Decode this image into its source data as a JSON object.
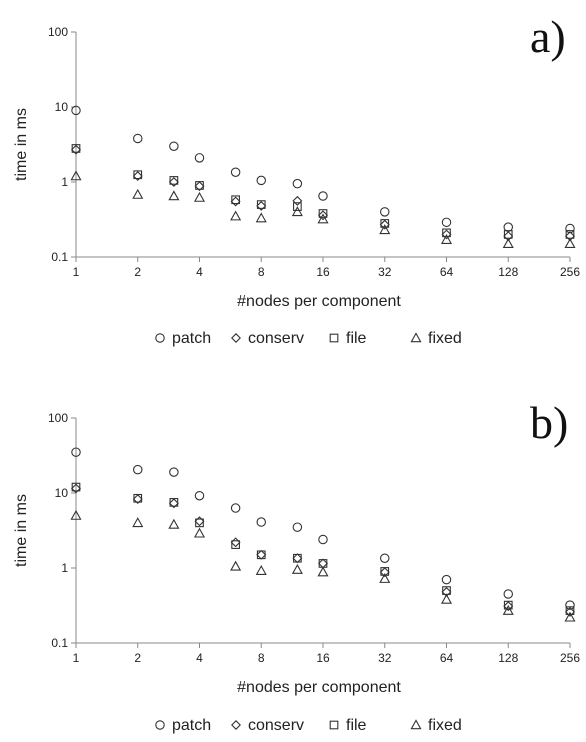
{
  "chart_data": [
    {
      "type": "scatter",
      "panel_label": "a)",
      "xlabel": "#nodes per component",
      "ylabel": "time in ms",
      "x_scale": "log2",
      "y_scale": "log10",
      "xlim": [
        1,
        256
      ],
      "ylim": [
        0.1,
        100
      ],
      "x_ticks": [
        "1",
        "2",
        "4",
        "8",
        "16",
        "32",
        "64",
        "128",
        "256"
      ],
      "y_ticks": [
        "0.1",
        "1",
        "10",
        "100"
      ],
      "grid": false,
      "legend_position": "bottom",
      "x": [
        1,
        2,
        3,
        4,
        6,
        8,
        12,
        16,
        32,
        64,
        128,
        256
      ],
      "series": [
        {
          "name": "patch",
          "marker": "circle",
          "values": [
            9.0,
            3.8,
            3.0,
            2.1,
            1.35,
            1.05,
            0.95,
            0.65,
            0.4,
            0.29,
            0.25,
            0.24
          ]
        },
        {
          "name": "conserv",
          "marker": "diamond",
          "values": [
            2.7,
            1.2,
            1.0,
            0.88,
            0.55,
            0.48,
            0.56,
            0.36,
            0.27,
            0.2,
            0.19,
            0.19
          ]
        },
        {
          "name": "file",
          "marker": "square",
          "values": [
            2.8,
            1.25,
            1.05,
            0.9,
            0.58,
            0.5,
            0.47,
            0.38,
            0.28,
            0.21,
            0.2,
            0.2
          ]
        },
        {
          "name": "fixed",
          "marker": "triangle",
          "values": [
            1.2,
            0.68,
            0.65,
            0.62,
            0.35,
            0.33,
            0.4,
            0.32,
            0.23,
            0.17,
            0.15,
            0.15
          ]
        }
      ]
    },
    {
      "type": "scatter",
      "panel_label": "b)",
      "xlabel": "#nodes per component",
      "ylabel": "time in ms",
      "x_scale": "log2",
      "y_scale": "log10",
      "xlim": [
        1,
        256
      ],
      "ylim": [
        0.1,
        100
      ],
      "x_ticks": [
        "1",
        "2",
        "4",
        "8",
        "16",
        "32",
        "64",
        "128",
        "256"
      ],
      "y_ticks": [
        "0.1",
        "1",
        "10",
        "100"
      ],
      "grid": false,
      "legend_position": "bottom",
      "x": [
        1,
        2,
        3,
        4,
        6,
        8,
        12,
        16,
        32,
        64,
        128,
        256
      ],
      "series": [
        {
          "name": "patch",
          "marker": "circle",
          "values": [
            35,
            20.5,
            19,
            9.2,
            6.3,
            4.1,
            3.5,
            2.4,
            1.35,
            0.7,
            0.45,
            0.32
          ]
        },
        {
          "name": "conserv",
          "marker": "diamond",
          "values": [
            11.5,
            8.3,
            7.3,
            4.2,
            2.2,
            1.5,
            1.35,
            1.15,
            0.88,
            0.48,
            0.31,
            0.26
          ]
        },
        {
          "name": "file",
          "marker": "square",
          "values": [
            12,
            8.5,
            7.5,
            4.0,
            2.05,
            1.5,
            1.35,
            1.15,
            0.9,
            0.5,
            0.32,
            0.27
          ]
        },
        {
          "name": "fixed",
          "marker": "triangle",
          "values": [
            5.0,
            4.0,
            3.8,
            2.9,
            1.05,
            0.92,
            0.95,
            0.88,
            0.72,
            0.38,
            0.27,
            0.22
          ]
        }
      ]
    }
  ]
}
